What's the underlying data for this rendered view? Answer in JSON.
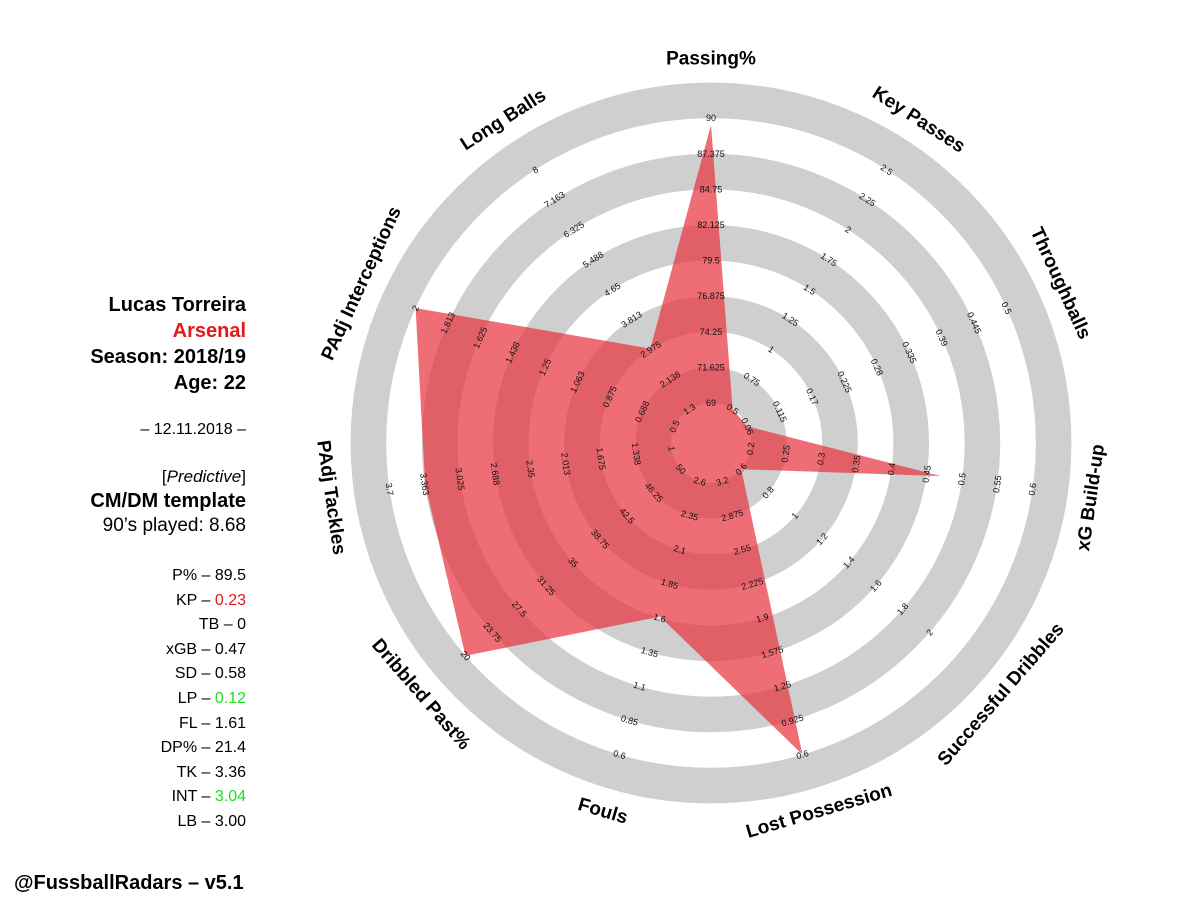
{
  "player": {
    "name": "Lucas Torreira",
    "team": "Arsenal",
    "season": "Season: 2018/19",
    "age": "Age: 22",
    "date": "– 12.11.2018 –",
    "predictive": "Predictive",
    "template": "CM/DM template",
    "played": "90’s played: 8.68"
  },
  "stats": [
    {
      "label": "P%",
      "value": "89.5",
      "color": ""
    },
    {
      "label": "KP",
      "value": "0.23",
      "color": "#e01a1a"
    },
    {
      "label": "TB",
      "value": "0",
      "color": ""
    },
    {
      "label": "xGB",
      "value": "0.47",
      "color": ""
    },
    {
      "label": "SD",
      "value": "0.58",
      "color": ""
    },
    {
      "label": "LP",
      "value": "0.12",
      "color": "#19e019"
    },
    {
      "label": "FL",
      "value": "1.61",
      "color": ""
    },
    {
      "label": "DP%",
      "value": "21.4",
      "color": ""
    },
    {
      "label": "TK",
      "value": "3.36",
      "color": ""
    },
    {
      "label": "INT",
      "value": "3.04",
      "color": "#19e019"
    },
    {
      "label": "LB",
      "value": "3.00",
      "color": ""
    }
  ],
  "credit": "@FussballRadars – v5.1",
  "colors": {
    "fill": "#e8303a",
    "ring": "#cfcfcf",
    "red_text": "#e01a1a",
    "green_text": "#19e019"
  },
  "chart_data": {
    "type": "radar",
    "axes": [
      {
        "name": "Passing%",
        "ticks": [
          "69",
          "71.625",
          "74.25",
          "76.875",
          "79.5",
          "82.125",
          "84.75",
          "87.375",
          "90"
        ],
        "value": 89.5
      },
      {
        "name": "Key Passes",
        "ticks": [
          "0.5",
          "0.75",
          "1",
          "1.25",
          "1.5",
          "1.75",
          "2",
          "2.25",
          "2.5"
        ],
        "value": 0.23
      },
      {
        "name": "Throughballs",
        "ticks": [
          "0.06",
          "0.115",
          "0.17",
          "0.225",
          "0.28",
          "0.335",
          "0.39",
          "0.445",
          "0.5"
        ],
        "value": 0
      },
      {
        "name": "xG Build-up",
        "ticks": [
          "0.2",
          "0.25",
          "0.3",
          "0.35",
          "0.4",
          "0.45",
          "0.5",
          "0.55",
          "0.6"
        ],
        "value": 0.47
      },
      {
        "name": "Successful Dribbles",
        "ticks": [
          "0.6",
          "0.8",
          "1",
          "1.2",
          "1.4",
          "1.6",
          "1.8",
          "2"
        ],
        "value": 0.58
      },
      {
        "name": "Lost Possession",
        "ticks": [
          "3.2",
          "2.875",
          "2.55",
          "2.225",
          "1.9",
          "1.575",
          "1.25",
          "0.925",
          "0.6"
        ],
        "value": 0.6
      },
      {
        "name": "Fouls",
        "ticks": [
          "2.6",
          "2.35",
          "2.1",
          "1.85",
          "1.6",
          "1.35",
          "1.1",
          "0.85",
          "0.6"
        ],
        "value": 1.61
      },
      {
        "name": "Dribbled Past%",
        "ticks": [
          "50",
          "46.25",
          "42.5",
          "38.75",
          "35",
          "31.25",
          "27.5",
          "23.75",
          "20"
        ],
        "value": 20
      },
      {
        "name": "PAdj Tackles",
        "ticks": [
          "1",
          "1.338",
          "1.675",
          "2.013",
          "2.35",
          "2.688",
          "3.025",
          "3.363",
          "3.7"
        ],
        "value": 3.36
      },
      {
        "name": "PAdj Interceptions",
        "ticks": [
          "0.5",
          "0.688",
          "0.875",
          "1.063",
          "1.25",
          "1.438",
          "1.625",
          "1.813",
          "2"
        ],
        "value": 2
      },
      {
        "name": "Long Balls",
        "ticks": [
          "1.3",
          "2.138",
          "2.975",
          "3.813",
          "4.65",
          "5.488",
          "6.325",
          "7.163",
          "8"
        ],
        "value": 3.0
      }
    ]
  }
}
